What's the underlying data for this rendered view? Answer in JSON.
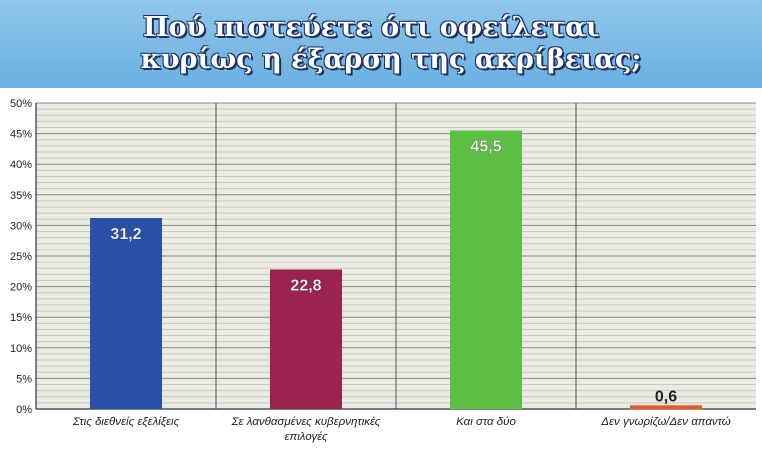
{
  "title_lines": [
    "Πού πιστεύετε ότι οφείλεται",
    "κυρίως η έξαρση της ακρίβειας;"
  ],
  "chart_data": {
    "type": "bar",
    "title": "Πού πιστεύετε ότι οφείλεται κυρίως η έξαρση της ακρίβειας;",
    "categories": [
      [
        "Στις διεθνείς εξελίξεις"
      ],
      [
        "Σε λανθασμένες κυβερνητικές",
        "επιλογές"
      ],
      [
        "Και στα δύο"
      ],
      [
        "Δεν γνωρίζω/Δεν απαντώ"
      ]
    ],
    "values": [
      31.2,
      22.8,
      45.5,
      0.6
    ],
    "value_labels": [
      "31,2",
      "22,8",
      "45,5",
      "0,6"
    ],
    "colors": [
      "#2a50a8",
      "#9b2350",
      "#5dbf44",
      "#e05a2a"
    ],
    "ylim": [
      0,
      50
    ],
    "yticks": [
      0,
      5,
      10,
      15,
      20,
      25,
      30,
      35,
      40,
      45,
      50
    ],
    "ytick_labels": [
      "0%",
      "5%",
      "10%",
      "15%",
      "20%",
      "25%",
      "30%",
      "35%",
      "40%",
      "45%",
      "50%"
    ],
    "grid": true,
    "plot_background": "#ebebe3"
  }
}
